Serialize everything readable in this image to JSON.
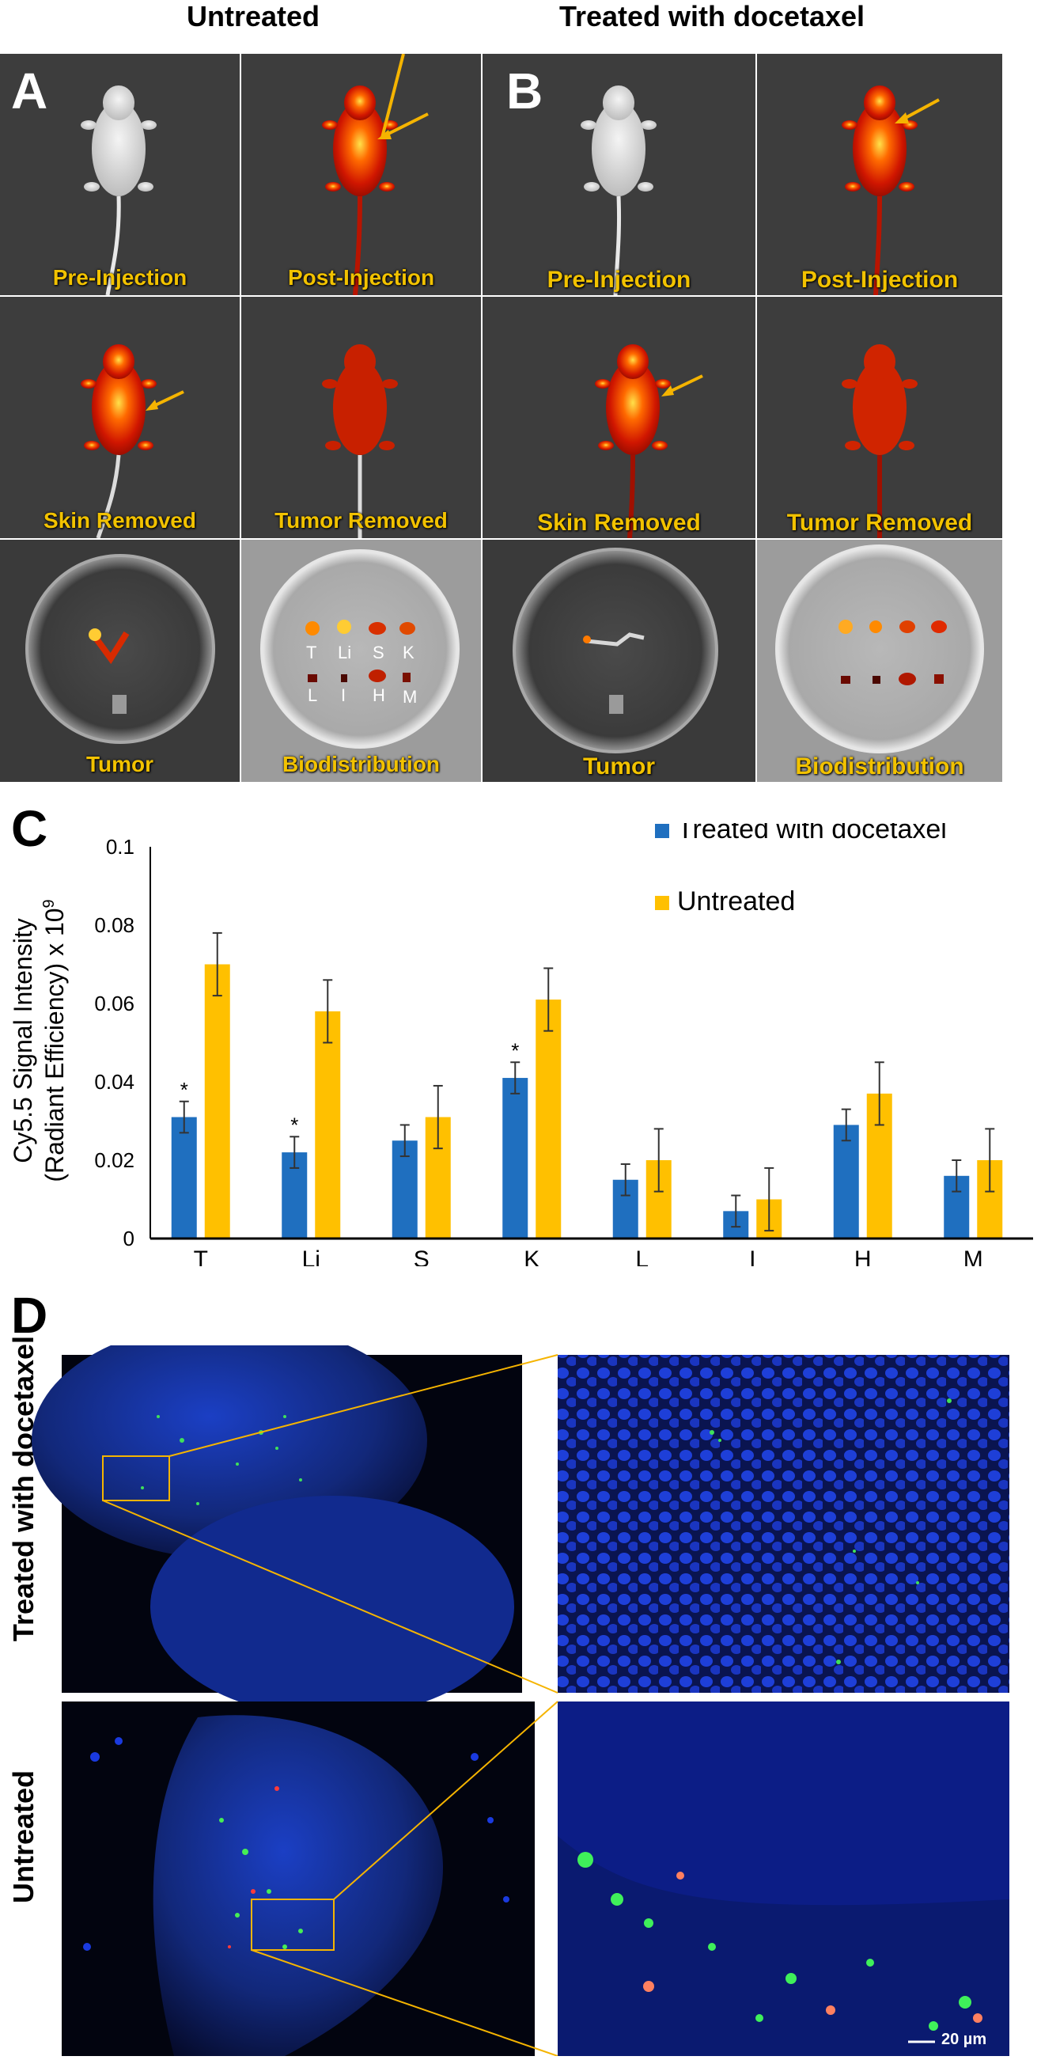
{
  "figure": {
    "col_titles": {
      "untreated": "Untreated",
      "treated": "Treated with docetaxel"
    },
    "panel_letters": {
      "a": "A",
      "b": "B",
      "c": "C",
      "d": "D"
    },
    "tile_captions": {
      "pre": "Pre-Injection",
      "post": "Post-Injection",
      "skin": "Skin Removed",
      "tumor_removed": "Tumor Removed",
      "tumor": "Tumor",
      "biodistribution": "Biodistribution"
    },
    "organ_labels": [
      "T",
      "Li",
      "S",
      "K",
      "L",
      "I",
      "H",
      "M"
    ],
    "row_labels": {
      "treated": "Treated with docetaxel",
      "untreated": "Untreated"
    },
    "scale_bar": "20 µm",
    "colors": {
      "treated": "#1f6fbf",
      "untreated": "#ffc000",
      "caption": "#f2c200",
      "arrow": "#f5b400"
    }
  },
  "chart_data": {
    "type": "bar",
    "title": "",
    "ylabel_line1": "Cy5.5 Signal Intensity",
    "ylabel_line2": "(Radiant Efficiency) x 10",
    "ylabel_exp": "9",
    "xlabel": "",
    "categories": [
      "T",
      "Li",
      "S",
      "K",
      "L",
      "I",
      "H",
      "M"
    ],
    "ylim": [
      0,
      0.1
    ],
    "yticks": [
      0,
      0.02,
      0.04,
      0.06,
      0.08,
      0.1
    ],
    "ytick_labels": [
      "0",
      "0.02",
      "0.04",
      "0.06",
      "0.08",
      "0.1"
    ],
    "legend_position": "top-right",
    "series": [
      {
        "name": "Treated with docetaxel",
        "color": "#1f6fbf",
        "values": [
          0.031,
          0.022,
          0.025,
          0.041,
          0.015,
          0.007,
          0.029,
          0.016
        ],
        "errors": [
          0.004,
          0.004,
          0.004,
          0.004,
          0.004,
          0.004,
          0.004,
          0.004
        ]
      },
      {
        "name": "Untreated",
        "color": "#ffc000",
        "values": [
          0.07,
          0.058,
          0.031,
          0.061,
          0.02,
          0.01,
          0.037,
          0.02
        ],
        "errors": [
          0.008,
          0.008,
          0.008,
          0.008,
          0.008,
          0.008,
          0.008,
          0.008
        ]
      }
    ],
    "significance_marker": "*",
    "significant_categories": [
      "T",
      "Li",
      "K"
    ]
  }
}
